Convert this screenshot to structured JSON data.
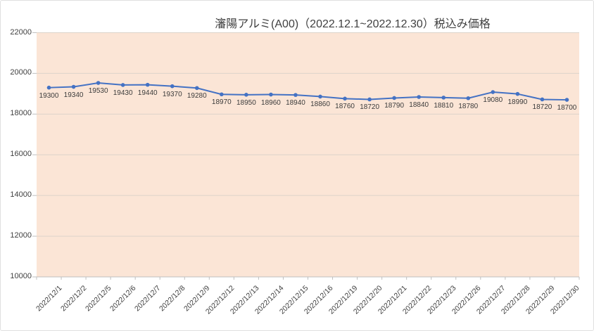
{
  "chart": {
    "title": "瀋陽アルミ(A00)（2022.12.1~2022.12.30）税込み価格"
  },
  "chart_data": {
    "type": "line",
    "title": "瀋陽アルミ(A00)（2022.12.1~2022.12.30）税込み価格",
    "categories": [
      "2022/12/1",
      "2022/12/2",
      "2022/12/5",
      "2022/12/6",
      "2022/12/7",
      "2022/12/8",
      "2022/12/9",
      "2022/12/12",
      "2022/12/13",
      "2022/12/14",
      "2022/12/15",
      "2022/12/16",
      "2022/12/19",
      "2022/12/20",
      "2022/12/21",
      "2022/12/22",
      "2022/12/23",
      "2022/12/26",
      "2022/12/27",
      "2022/12/28",
      "2022/12/29",
      "2022/12/30"
    ],
    "values": [
      19300,
      19340,
      19530,
      19430,
      19440,
      19370,
      19280,
      18970,
      18950,
      18960,
      18940,
      18860,
      18760,
      18720,
      18790,
      18840,
      18810,
      18780,
      19080,
      18990,
      18720,
      18700
    ],
    "xlabel": "",
    "ylabel": "",
    "ylim": [
      10000,
      22000
    ],
    "yticks": [
      10000,
      12000,
      14000,
      16000,
      18000,
      20000,
      22000
    ],
    "grid": "horizontal",
    "legend": "none",
    "data_labels": "below",
    "marker": "circle",
    "colors": {
      "series": "#4472C4",
      "plot_background": "#FBE5D6",
      "gridline": "#DCD3CA",
      "axis": "#BFBFBF",
      "text": "#404040",
      "chart_background": "#FFFFFF",
      "chart_border": "#E0E0E0"
    }
  }
}
